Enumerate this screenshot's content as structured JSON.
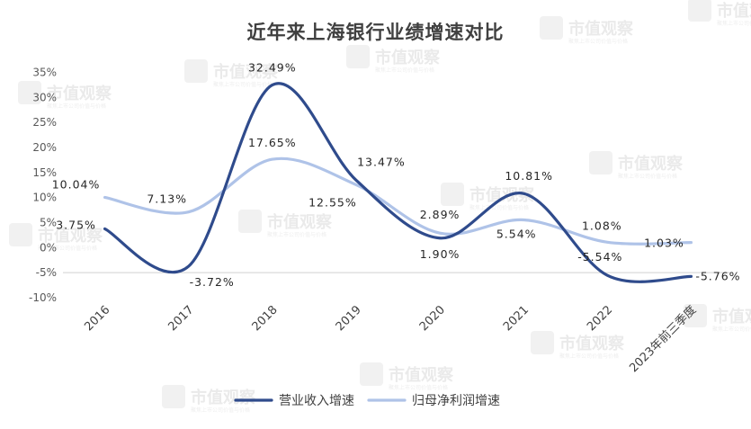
{
  "chart_data": {
    "type": "line",
    "title": "近年来上海银行业绩增速对比",
    "categories": [
      "2016",
      "2017",
      "2018",
      "2019",
      "2020",
      "2021",
      "2022",
      "2023年前三季度"
    ],
    "ylim": [
      -10,
      35
    ],
    "y_ticks": [
      "-10%",
      "-5%",
      "0%",
      "5%",
      "10%",
      "15%",
      "20%",
      "25%",
      "30%",
      "35%"
    ],
    "grid": false,
    "legend_position": "bottom",
    "series": [
      {
        "name": "营业收入增速",
        "color": "#2F4B8C",
        "values": [
          3.75,
          -3.72,
          32.49,
          13.47,
          1.9,
          10.81,
          -5.54,
          -5.76
        ],
        "labels": [
          "3.75%",
          "-3.72%",
          "32.49%",
          "13.47%",
          "1.90%",
          "10.81%",
          "-5.54%",
          "-5.76%"
        ]
      },
      {
        "name": "归母净利润增速",
        "color": "#AFC3E8",
        "values": [
          10.04,
          7.13,
          17.65,
          12.55,
          2.89,
          5.54,
          1.08,
          1.03
        ],
        "labels": [
          "10.04%",
          "7.13%",
          "17.65%",
          "12.55%",
          "2.89%",
          "5.54%",
          "1.08%",
          "1.03%"
        ]
      }
    ]
  },
  "watermark": {
    "text": "市值观察",
    "subtext": "聚焦上市公司价值与价格"
  }
}
